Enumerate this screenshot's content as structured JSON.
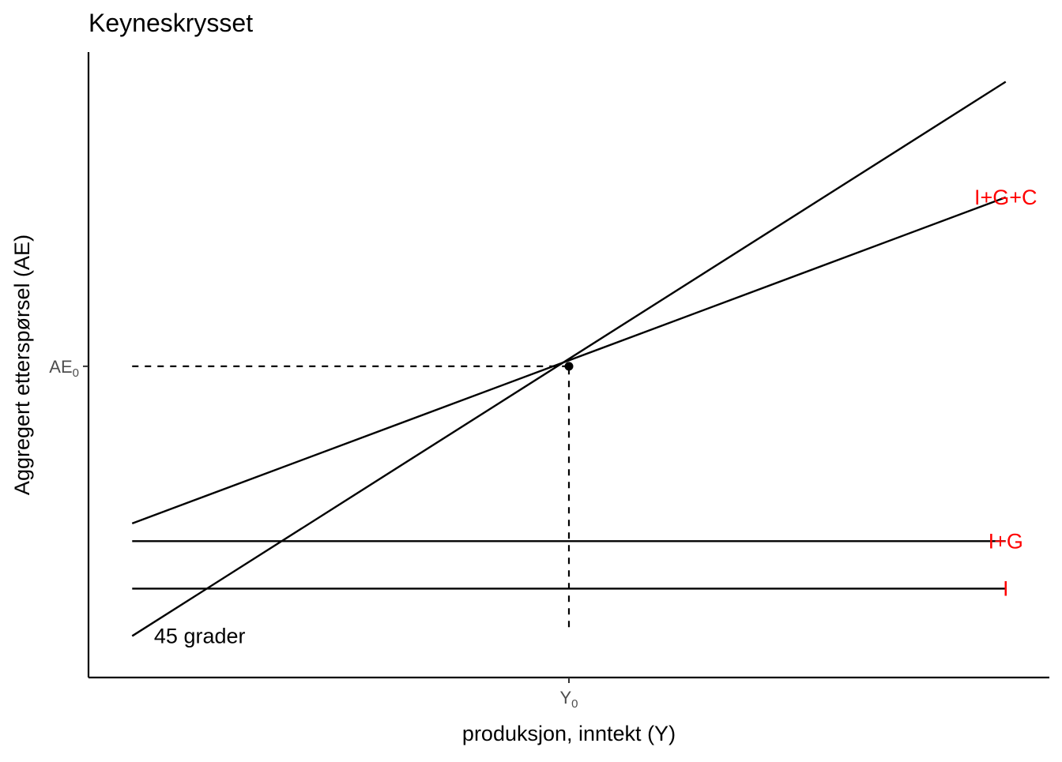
{
  "chart_data": {
    "type": "line",
    "title": "Keyneskrysset",
    "xlabel": "produksjon, inntekt (Y)",
    "ylabel": "Aggregert etterspørsel (AE)",
    "xlim": [
      -0.5,
      10.5
    ],
    "ylim": [
      -0.25,
      10.3
    ],
    "grid": false,
    "x_ticks": [
      {
        "value": 5,
        "main": "Y",
        "sub": "0"
      }
    ],
    "y_ticks": [
      {
        "value": 5,
        "main": "AE",
        "sub": "0"
      }
    ],
    "series": [
      {
        "key": "line45",
        "points": [
          [
            0,
            0.45
          ],
          [
            10,
            9.8
          ]
        ],
        "label": "45 grader",
        "label_pos": [
          0.25,
          0.45
        ],
        "label_anchor": "start",
        "label_color": "#000000",
        "color": "#000000"
      },
      {
        "key": "igc",
        "points": [
          [
            0,
            2.35
          ],
          [
            10,
            7.85
          ]
        ],
        "label": "I+G+C",
        "label_pos": [
          10,
          7.85
        ],
        "label_anchor": "middle",
        "label_color": "#ff0000",
        "color": "#000000"
      },
      {
        "key": "ig",
        "points": [
          [
            0,
            2.05
          ],
          [
            10,
            2.05
          ]
        ],
        "label": "I+G",
        "label_pos": [
          10,
          2.05
        ],
        "label_anchor": "middle",
        "label_color": "#ff0000",
        "color": "#000000"
      },
      {
        "key": "i",
        "points": [
          [
            0,
            1.25
          ],
          [
            10,
            1.25
          ]
        ],
        "label": "I",
        "label_pos": [
          10,
          1.25
        ],
        "label_anchor": "middle",
        "label_color": "#ff0000",
        "color": "#000000"
      }
    ],
    "guides": {
      "horizontal": {
        "y": 5,
        "x_from": 0,
        "x_to": 5
      },
      "vertical": {
        "x": 5,
        "y_from": 0.6,
        "y_to": 5
      }
    },
    "equilibrium_point": {
      "x": 5,
      "y": 5
    }
  }
}
